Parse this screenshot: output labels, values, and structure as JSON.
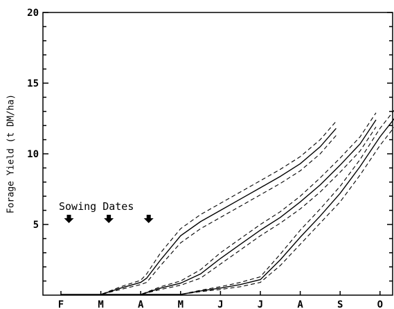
{
  "chart_data": {
    "type": "line",
    "title": "",
    "xlabel": "",
    "ylabel": "Forage Yield (t DM/ha)",
    "categories": [
      "F",
      "M",
      "A",
      "M",
      "J",
      "J",
      "A",
      "S",
      "O"
    ],
    "ylim": [
      0,
      20
    ],
    "yticks": [
      5,
      10,
      15,
      20
    ],
    "grid": false,
    "annotation": {
      "text": "Sowing Dates",
      "arrow_positions_month": [
        0.2,
        1.2,
        2.2
      ]
    },
    "series": [
      {
        "x": [
          0.0,
          0.5,
          1.0,
          1.5,
          2.0,
          2.15,
          2.5,
          3.0,
          3.5,
          4.0,
          4.5,
          5.0,
          5.5,
          6.0,
          6.5,
          6.9
        ],
        "y": [
          0.05,
          0.05,
          0.05,
          0.5,
          0.9,
          1.2,
          2.5,
          4.2,
          5.2,
          6.0,
          6.8,
          7.6,
          8.4,
          9.3,
          10.5,
          11.8
        ],
        "lower": [
          0.05,
          0.05,
          0.05,
          0.4,
          0.75,
          0.9,
          2.1,
          3.7,
          4.7,
          5.5,
          6.3,
          7.1,
          7.9,
          8.8,
          10.0,
          11.3
        ],
        "upper": [
          0.05,
          0.05,
          0.05,
          0.6,
          1.05,
          1.5,
          3.0,
          4.7,
          5.7,
          6.5,
          7.3,
          8.1,
          8.9,
          9.8,
          11.0,
          12.3
        ]
      },
      {
        "x": [
          1.0,
          1.5,
          2.0,
          2.5,
          3.0,
          3.5,
          4.0,
          4.5,
          5.0,
          5.5,
          6.0,
          6.5,
          7.0,
          7.5,
          7.9
        ],
        "y": [
          0.05,
          0.05,
          0.05,
          0.5,
          0.85,
          1.5,
          2.6,
          3.6,
          4.6,
          5.5,
          6.6,
          7.8,
          9.2,
          10.7,
          12.4
        ],
        "lower": [
          0.05,
          0.05,
          0.05,
          0.4,
          0.7,
          1.2,
          2.2,
          3.2,
          4.2,
          5.1,
          6.1,
          7.3,
          8.7,
          10.2,
          11.9
        ],
        "upper": [
          0.05,
          0.05,
          0.05,
          0.6,
          1.0,
          1.8,
          3.0,
          4.0,
          5.0,
          5.9,
          7.0,
          8.3,
          9.7,
          11.2,
          12.9
        ]
      },
      {
        "x": [
          2.0,
          2.5,
          3.0,
          3.5,
          4.0,
          4.5,
          5.0,
          5.5,
          6.0,
          6.5,
          7.0,
          7.5,
          8.0,
          8.5,
          8.9
        ],
        "y": [
          0.05,
          0.05,
          0.05,
          0.3,
          0.5,
          0.75,
          1.1,
          2.5,
          4.1,
          5.6,
          7.2,
          9.1,
          11.2,
          13.0,
          14.7
        ],
        "lower": [
          0.05,
          0.05,
          0.05,
          0.25,
          0.4,
          0.6,
          0.9,
          2.1,
          3.6,
          5.1,
          6.6,
          8.5,
          10.6,
          12.4,
          14.0
        ],
        "upper": [
          0.05,
          0.05,
          0.05,
          0.35,
          0.6,
          0.9,
          1.3,
          2.9,
          4.6,
          6.1,
          7.7,
          9.6,
          11.8,
          13.6,
          15.2
        ]
      }
    ]
  }
}
